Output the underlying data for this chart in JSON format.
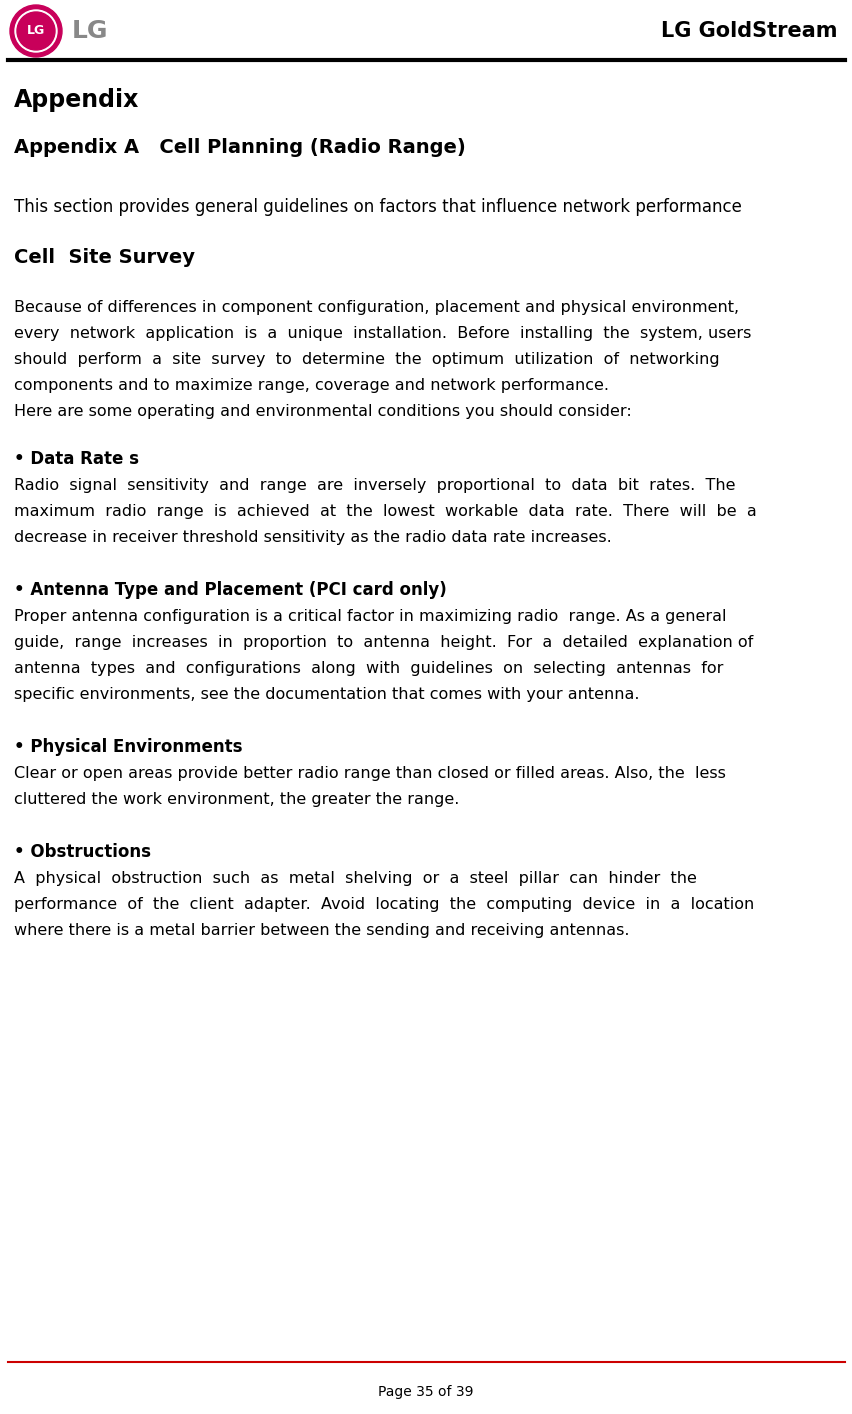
{
  "bg_color": "#ffffff",
  "header_line_color": "#000000",
  "footer_line_color": "#cc0000",
  "header_title": "LG GoldStream",
  "footer_text": "Page 35 of 39",
  "appendix_heading": "Appendix",
  "section_heading": "Appendix A   Cell Planning (Radio Range)",
  "intro_text": "This section provides general guidelines on factors that influence network performance",
  "cell_site_heading": "Cell  Site Survey",
  "bullet1_heading": "• Data Rate s",
  "bullet2_heading": "• Antenna Type and Placement (PCI card only)",
  "bullet3_heading": "• Physical Environments",
  "bullet4_heading": "• Obstructions",
  "logo_crimson": "#c8005a",
  "logo_gray": "#888888",
  "cell_body_lines": [
    "Because of differences in component configuration, placement and physical environment,",
    "every  network  application  is  a  unique  installation.  Before  installing  the  system, users",
    "should  perform  a  site  survey  to  determine  the  optimum  utilization  of  networking",
    "components and to maximize range, coverage and network performance.",
    "Here are some operating and environmental conditions you should consider:"
  ],
  "b1_lines": [
    "Radio  signal  sensitivity  and  range  are  inversely  proportional  to  data  bit  rates.  The",
    "maximum  radio  range  is  achieved  at  the  lowest  workable  data  rate.  There  will  be  a",
    "decrease in receiver threshold sensitivity as the radio data rate increases."
  ],
  "b2_lines": [
    "Proper antenna configuration is a critical factor in maximizing radio  range. As a general",
    "guide,  range  increases  in  proportion  to  antenna  height.  For  a  detailed  explanation of",
    "antenna  types  and  configurations  along  with  guidelines  on  selecting  antennas  for",
    "specific environments, see the documentation that comes with your antenna."
  ],
  "b3_lines": [
    "Clear or open areas provide better radio range than closed or filled areas. Also, the  less",
    "cluttered the work environment, the greater the range."
  ],
  "b4_lines": [
    "A  physical  obstruction  such  as  metal  shelving  or  a  steel  pillar  can  hinder  the",
    "performance  of  the  client  adapter.  Avoid  locating  the  computing  device  in  a  location",
    "where there is a metal barrier between the sending and receiving antennas."
  ]
}
